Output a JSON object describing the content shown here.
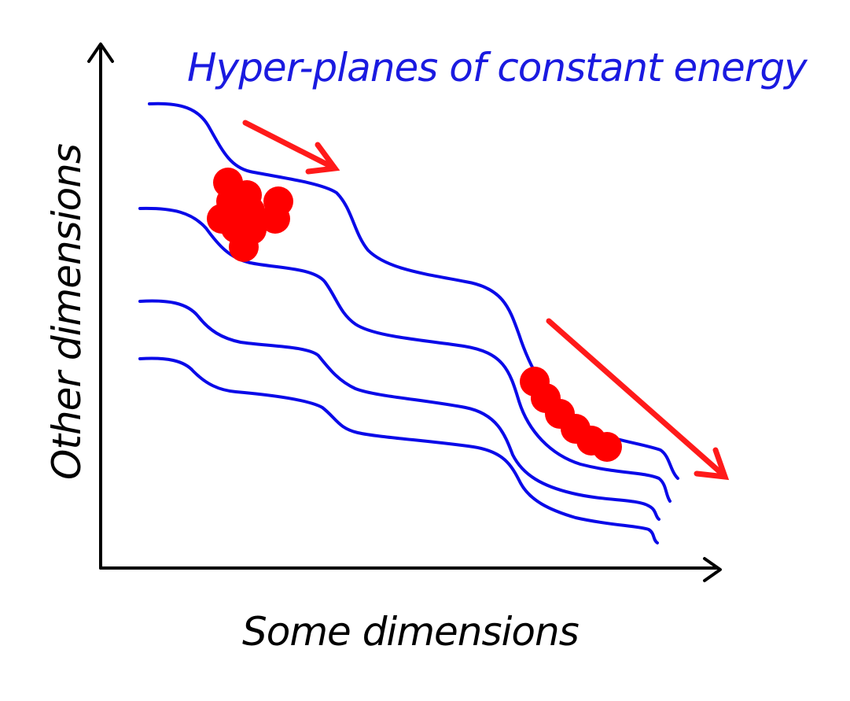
{
  "diagram": {
    "title": "Hyper-planes of constant energy",
    "x_axis_label": "Some dimensions",
    "y_axis_label": "Other dimensions"
  },
  "colors": {
    "curves": "#0a0ae8",
    "points": "#ff0000",
    "arrows": "#ff1a1a",
    "axes": "#000000",
    "title": "#1a1ae0",
    "axis_labels": "#000000"
  }
}
